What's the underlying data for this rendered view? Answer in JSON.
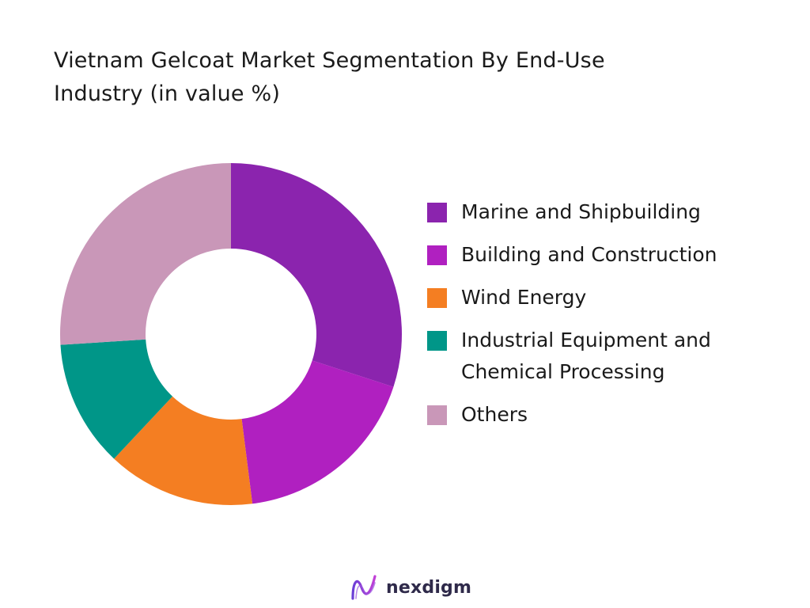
{
  "chart_data": {
    "type": "pie",
    "title": "Vietnam Gelcoat Market Segmentation By End-Use Industry (in value %)",
    "labels": [
      "Marine and Shipbuilding",
      "Building and Construction",
      "Wind Energy",
      "Industrial Equipment and Chemical Processing",
      "Others"
    ],
    "values": [
      30,
      18,
      14,
      12,
      26
    ],
    "colors": [
      "#8B24AE",
      "#B020C0",
      "#F47E22",
      "#009688",
      "#C997B8"
    ],
    "donut": true,
    "legend_position": "right"
  },
  "footer": {
    "brand": "nexdigm"
  }
}
